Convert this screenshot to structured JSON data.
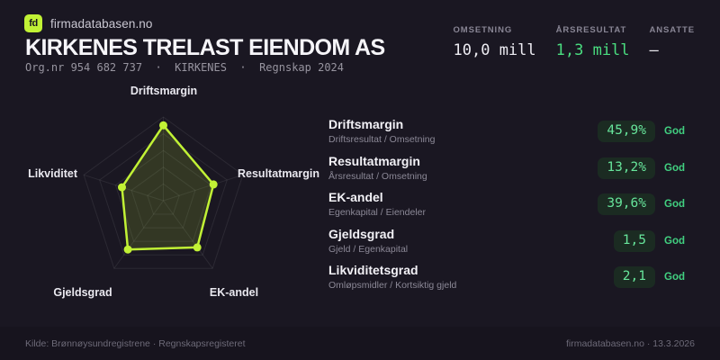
{
  "brand": {
    "logo_text": "fd",
    "name": "firmadatabasen.no"
  },
  "header": {
    "title": "KIRKENES TRELAST EIENDOM AS",
    "meta": "Org.nr 954 682 737  ·  KIRKENES  ·  Regnskap 2024"
  },
  "stats": [
    {
      "label": "OMSETNING",
      "value": "10,0 mill",
      "color": "white"
    },
    {
      "label": "ÅRSRESULTAT",
      "value": "1,3 mill",
      "color": "green"
    },
    {
      "label": "ANSATTE",
      "value": "–",
      "color": "white"
    }
  ],
  "metrics": [
    {
      "name": "Driftsmargin",
      "formula": "Driftsresultat / Omsetning",
      "value": "45,9%",
      "rating": "God"
    },
    {
      "name": "Resultatmargin",
      "formula": "Årsresultat / Omsetning",
      "value": "13,2%",
      "rating": "God"
    },
    {
      "name": "EK-andel",
      "formula": "Egenkapital / Eiendeler",
      "value": "39,6%",
      "rating": "God"
    },
    {
      "name": "Gjeldsgrad",
      "formula": "Gjeld / Egenkapital",
      "value": "1,5",
      "rating": "God"
    },
    {
      "name": "Likviditetsgrad",
      "formula": "Omløpsmidler / Kortsiktig gjeld",
      "value": "2,1",
      "rating": "God"
    }
  ],
  "chart_data": {
    "type": "radar",
    "axes": [
      "Driftsmargin",
      "Resultatmargin",
      "EK-andel",
      "Gjeldsgrad",
      "Likviditet"
    ],
    "values_normalized": [
      0.9,
      0.63,
      0.69,
      0.72,
      0.52
    ],
    "metric_values": [
      "45,9%",
      "13,2%",
      "39,6%",
      "1,5",
      "2,1"
    ],
    "rings": 5,
    "max": 1,
    "grid": true,
    "legend": "none"
  },
  "colors": {
    "background": "#1A1722",
    "accent": "#C1F235",
    "radar_fill": "rgba(193,242,53,0.15)",
    "grid": "rgba(255,255,255,0.08)",
    "green": "#4ADE80",
    "pill_bg": "#1B2B22",
    "pill_text": "#67E59B"
  },
  "footer": {
    "source": "Kilde: Brønnøysundregistrene · Regnskapsregisteret",
    "site": "firmadatabasen.no · 13.3.2026"
  }
}
